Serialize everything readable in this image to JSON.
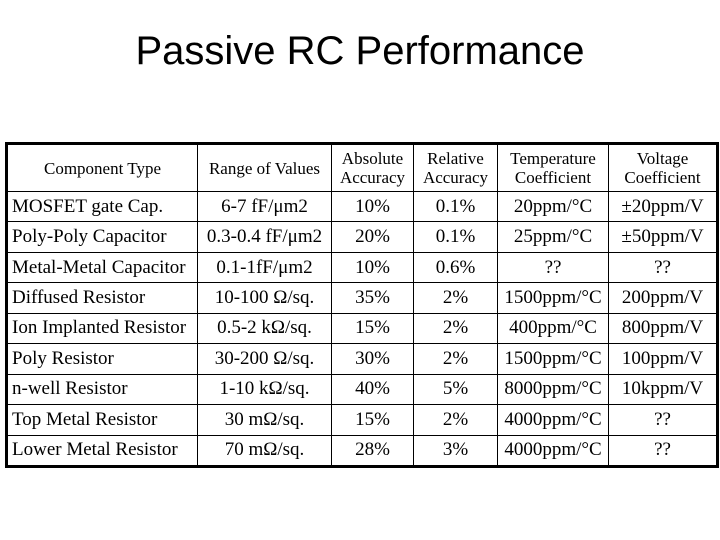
{
  "title": "Passive RC Performance",
  "table": {
    "headers": [
      "Component Type",
      "Range of Values",
      "Absolute Accuracy",
      "Relative Accuracy",
      "Temperature Coefficient",
      "Voltage Coefficient"
    ],
    "rows": [
      [
        "MOSFET gate Cap.",
        "6-7 fF/μm2",
        "10%",
        "0.1%",
        "20ppm/°C",
        "±20ppm/V"
      ],
      [
        "Poly-Poly Capacitor",
        "0.3-0.4 fF/μm2",
        "20%",
        "0.1%",
        "25ppm/°C",
        "±50ppm/V"
      ],
      [
        "Metal-Metal Capacitor",
        "0.1-1fF/μm2",
        "10%",
        "0.6%",
        "??",
        "??"
      ],
      [
        "Diffused Resistor",
        "10-100 Ω/sq.",
        "35%",
        "2%",
        "1500ppm/°C",
        "200ppm/V"
      ],
      [
        "Ion Implanted Resistor",
        "0.5-2 kΩ/sq.",
        "15%",
        "2%",
        "400ppm/°C",
        "800ppm/V"
      ],
      [
        "Poly Resistor",
        "30-200 Ω/sq.",
        "30%",
        "2%",
        "1500ppm/°C",
        "100ppm/V"
      ],
      [
        "n-well Resistor",
        "1-10 kΩ/sq.",
        "40%",
        "5%",
        "8000ppm/°C",
        "10kppm/V"
      ],
      [
        "Top Metal Resistor",
        "30 mΩ/sq.",
        "15%",
        "2%",
        "4000ppm/°C",
        "??"
      ],
      [
        "Lower Metal Resistor",
        "70 mΩ/sq.",
        "28%",
        "3%",
        "4000ppm/°C",
        "??"
      ]
    ]
  }
}
